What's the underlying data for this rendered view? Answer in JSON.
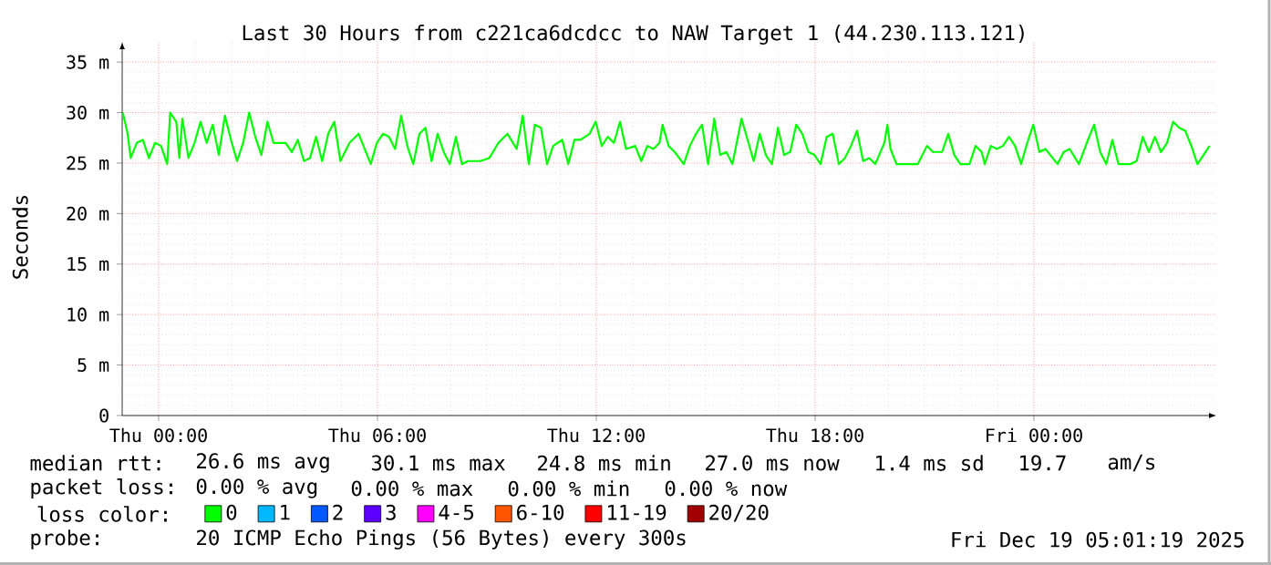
{
  "chart_data": {
    "type": "line",
    "title": "Last 30 Hours from c221ca6dcdcc to NAW Target 1 (44.230.113.121)",
    "ylabel": "Seconds",
    "xlim": [
      "2025-12-17T23:00",
      "2025-12-19T05:00"
    ],
    "xticks": [
      {
        "value": "2025-12-18T00:00",
        "label": "Thu 00:00"
      },
      {
        "value": "2025-12-18T06:00",
        "label": "Thu 06:00"
      },
      {
        "value": "2025-12-18T12:00",
        "label": "Thu 12:00"
      },
      {
        "value": "2025-12-18T18:00",
        "label": "Thu 18:00"
      },
      {
        "value": "2025-12-19T00:00",
        "label": "Fri 00:00"
      }
    ],
    "ylim": [
      0,
      37
    ],
    "yticks": [
      0,
      {
        "value": 5,
        "label": "5 m"
      },
      {
        "value": 10,
        "label": "10 m"
      },
      {
        "value": 15,
        "label": "15 m"
      },
      {
        "value": 20,
        "label": "20 m"
      },
      {
        "value": 25,
        "label": "25 m"
      },
      {
        "value": 30,
        "label": "30 m"
      },
      {
        "value": 35,
        "label": "35 m"
      }
    ],
    "grid": true,
    "legend": "bottom",
    "legend_title": "loss color:",
    "series": [
      {
        "name": "0",
        "color": "#00ff00",
        "x": [
          "2025-12-17T23:01",
          "2025-12-17T23:09",
          "2025-12-17T23:14",
          "2025-12-17T23:24",
          "2025-12-17T23:34",
          "2025-12-17T23:44",
          "2025-12-17T23:54",
          "2025-12-18T00:04",
          "2025-12-18T00:14",
          "2025-12-18T00:19",
          "2025-12-18T00:29",
          "2025-12-18T00:34",
          "2025-12-18T00:39",
          "2025-12-18T00:49",
          "2025-12-18T00:59",
          "2025-12-18T01:09",
          "2025-12-18T01:19",
          "2025-12-18T01:29",
          "2025-12-18T01:39",
          "2025-12-18T01:49",
          "2025-12-18T01:59",
          "2025-12-18T02:09",
          "2025-12-18T02:19",
          "2025-12-18T02:29",
          "2025-12-18T02:39",
          "2025-12-18T02:49",
          "2025-12-18T02:59",
          "2025-12-18T03:09",
          "2025-12-18T03:29",
          "2025-12-18T03:39",
          "2025-12-18T03:49",
          "2025-12-18T03:59",
          "2025-12-18T04:09",
          "2025-12-18T04:19",
          "2025-12-18T04:29",
          "2025-12-18T04:39",
          "2025-12-18T04:49",
          "2025-12-18T04:59",
          "2025-12-18T05:14",
          "2025-12-18T05:29",
          "2025-12-18T05:39",
          "2025-12-18T05:49",
          "2025-12-18T05:59",
          "2025-12-18T06:09",
          "2025-12-18T06:19",
          "2025-12-18T06:29",
          "2025-12-18T06:39",
          "2025-12-18T06:49",
          "2025-12-18T06:59",
          "2025-12-18T07:09",
          "2025-12-18T07:19",
          "2025-12-18T07:29",
          "2025-12-18T07:39",
          "2025-12-18T07:49",
          "2025-12-18T07:59",
          "2025-12-18T08:09",
          "2025-12-18T08:19",
          "2025-12-18T08:29",
          "2025-12-18T08:49",
          "2025-12-18T09:04",
          "2025-12-18T09:19",
          "2025-12-18T09:34",
          "2025-12-18T09:49",
          "2025-12-18T09:59",
          "2025-12-18T10:09",
          "2025-12-18T10:19",
          "2025-12-18T10:29",
          "2025-12-18T10:39",
          "2025-12-18T10:49",
          "2025-12-18T11:04",
          "2025-12-18T11:14",
          "2025-12-18T11:24",
          "2025-12-18T11:34",
          "2025-12-18T11:49",
          "2025-12-18T11:59",
          "2025-12-18T12:09",
          "2025-12-18T12:19",
          "2025-12-18T12:29",
          "2025-12-18T12:39",
          "2025-12-18T12:49",
          "2025-12-18T13:04",
          "2025-12-18T13:14",
          "2025-12-18T13:24",
          "2025-12-18T13:34",
          "2025-12-18T13:44",
          "2025-12-18T13:49",
          "2025-12-18T13:59",
          "2025-12-18T14:09",
          "2025-12-18T14:24",
          "2025-12-18T14:34",
          "2025-12-18T14:44",
          "2025-12-18T14:54",
          "2025-12-18T15:04",
          "2025-12-18T15:14",
          "2025-12-18T15:24",
          "2025-12-18T15:34",
          "2025-12-18T15:44",
          "2025-12-18T15:59",
          "2025-12-18T16:09",
          "2025-12-18T16:19",
          "2025-12-18T16:29",
          "2025-12-18T16:39",
          "2025-12-18T16:49",
          "2025-12-18T16:59",
          "2025-12-18T17:09",
          "2025-12-18T17:19",
          "2025-12-18T17:29",
          "2025-12-18T17:39",
          "2025-12-18T17:49",
          "2025-12-18T17:59",
          "2025-12-18T18:09",
          "2025-12-18T18:19",
          "2025-12-18T18:29",
          "2025-12-18T18:39",
          "2025-12-18T18:49",
          "2025-12-18T18:59",
          "2025-12-18T19:09",
          "2025-12-18T19:19",
          "2025-12-18T19:29",
          "2025-12-18T19:39",
          "2025-12-18T19:54",
          "2025-12-18T19:59",
          "2025-12-18T20:04",
          "2025-12-18T20:14",
          "2025-12-18T20:29",
          "2025-12-18T20:49",
          "2025-12-18T21:04",
          "2025-12-18T21:14",
          "2025-12-18T21:29",
          "2025-12-18T21:39",
          "2025-12-18T21:49",
          "2025-12-18T21:59",
          "2025-12-18T22:14",
          "2025-12-18T22:24",
          "2025-12-18T22:34",
          "2025-12-18T22:39",
          "2025-12-18T22:49",
          "2025-12-18T22:59",
          "2025-12-18T23:09",
          "2025-12-18T23:19",
          "2025-12-18T23:29",
          "2025-12-18T23:39",
          "2025-12-18T23:49",
          "2025-12-18T23:59",
          "2025-12-19T00:09",
          "2025-12-19T00:19",
          "2025-12-19T00:39",
          "2025-12-19T00:49",
          "2025-12-19T00:59",
          "2025-12-19T01:14",
          "2025-12-19T01:29",
          "2025-12-19T01:39",
          "2025-12-19T01:49",
          "2025-12-19T01:59",
          "2025-12-19T02:09",
          "2025-12-19T02:19",
          "2025-12-19T02:39",
          "2025-12-19T02:49",
          "2025-12-19T02:59",
          "2025-12-19T03:09",
          "2025-12-19T03:19",
          "2025-12-19T03:29",
          "2025-12-19T03:39",
          "2025-12-19T03:49",
          "2025-12-19T03:59",
          "2025-12-19T04:09",
          "2025-12-19T04:19",
          "2025-12-19T04:29",
          "2025-12-19T04:39",
          "2025-12-19T04:49"
        ],
        "values": [
          30.0,
          27.9,
          25.5,
          27.0,
          27.3,
          25.5,
          27.0,
          26.7,
          24.9,
          30.0,
          29.1,
          25.5,
          29.4,
          25.5,
          27.0,
          29.1,
          27.0,
          28.8,
          25.8,
          29.7,
          27.3,
          25.2,
          27.0,
          30.0,
          27.6,
          25.8,
          29.1,
          27.0,
          27.0,
          26.1,
          27.3,
          25.2,
          25.5,
          27.6,
          25.2,
          27.9,
          29.1,
          25.2,
          27.0,
          27.9,
          26.4,
          24.9,
          27.0,
          27.9,
          27.6,
          26.4,
          29.7,
          26.7,
          24.9,
          27.9,
          28.5,
          25.2,
          27.9,
          26.1,
          24.9,
          27.6,
          24.9,
          25.2,
          25.2,
          25.5,
          27.0,
          27.9,
          26.4,
          29.7,
          24.9,
          28.8,
          28.5,
          24.9,
          26.7,
          27.3,
          24.9,
          27.3,
          27.3,
          27.9,
          29.1,
          26.7,
          27.6,
          27.0,
          29.1,
          26.4,
          26.7,
          25.2,
          26.7,
          26.4,
          27.0,
          28.8,
          26.7,
          26.1,
          24.9,
          26.7,
          27.9,
          28.8,
          24.9,
          29.4,
          25.8,
          26.1,
          24.9,
          29.4,
          27.3,
          25.2,
          27.9,
          25.8,
          24.9,
          28.5,
          25.8,
          26.1,
          28.8,
          27.9,
          26.1,
          25.8,
          24.9,
          27.6,
          27.9,
          24.9,
          25.5,
          26.7,
          28.2,
          25.2,
          25.5,
          24.9,
          27.0,
          28.8,
          26.4,
          24.9,
          24.9,
          24.9,
          26.7,
          26.1,
          26.1,
          27.9,
          25.8,
          24.9,
          24.9,
          26.7,
          26.1,
          24.9,
          26.7,
          26.4,
          26.7,
          27.6,
          26.7,
          24.9,
          27.0,
          28.8,
          26.1,
          26.4,
          24.9,
          26.1,
          26.4,
          24.9,
          27.3,
          28.8,
          26.1,
          24.9,
          27.3,
          24.9,
          24.9,
          25.2,
          27.6,
          26.1,
          27.6,
          26.1,
          27.0,
          29.1,
          28.5,
          28.2,
          26.7,
          24.9,
          25.8,
          26.7
        ]
      },
      {
        "name": "1",
        "color": "#00b8ff"
      },
      {
        "name": "2",
        "color": "#0059ff"
      },
      {
        "name": "3",
        "color": "#5e00ff"
      },
      {
        "name": "4-5",
        "color": "#ff00ff"
      },
      {
        "name": "6-10",
        "color": "#ff5500"
      },
      {
        "name": "11-19",
        "color": "#ff0000"
      },
      {
        "name": "20/20",
        "color": "#a10000"
      }
    ],
    "annotations": [
      "median rtt:",
      "26.6 ms avg",
      "30.1 ms max",
      "24.8 ms min",
      "27.0 ms now",
      "1.4 ms sd",
      "19.7",
      "am/s",
      "packet loss:",
      "0.00 % avg",
      "0.00 % max",
      "0.00 % min",
      "0.00 % now",
      "probe:",
      "20 ICMP Echo Pings (56 Bytes) every 300s",
      "Fri Dec 19 05:01:19 2025"
    ]
  }
}
